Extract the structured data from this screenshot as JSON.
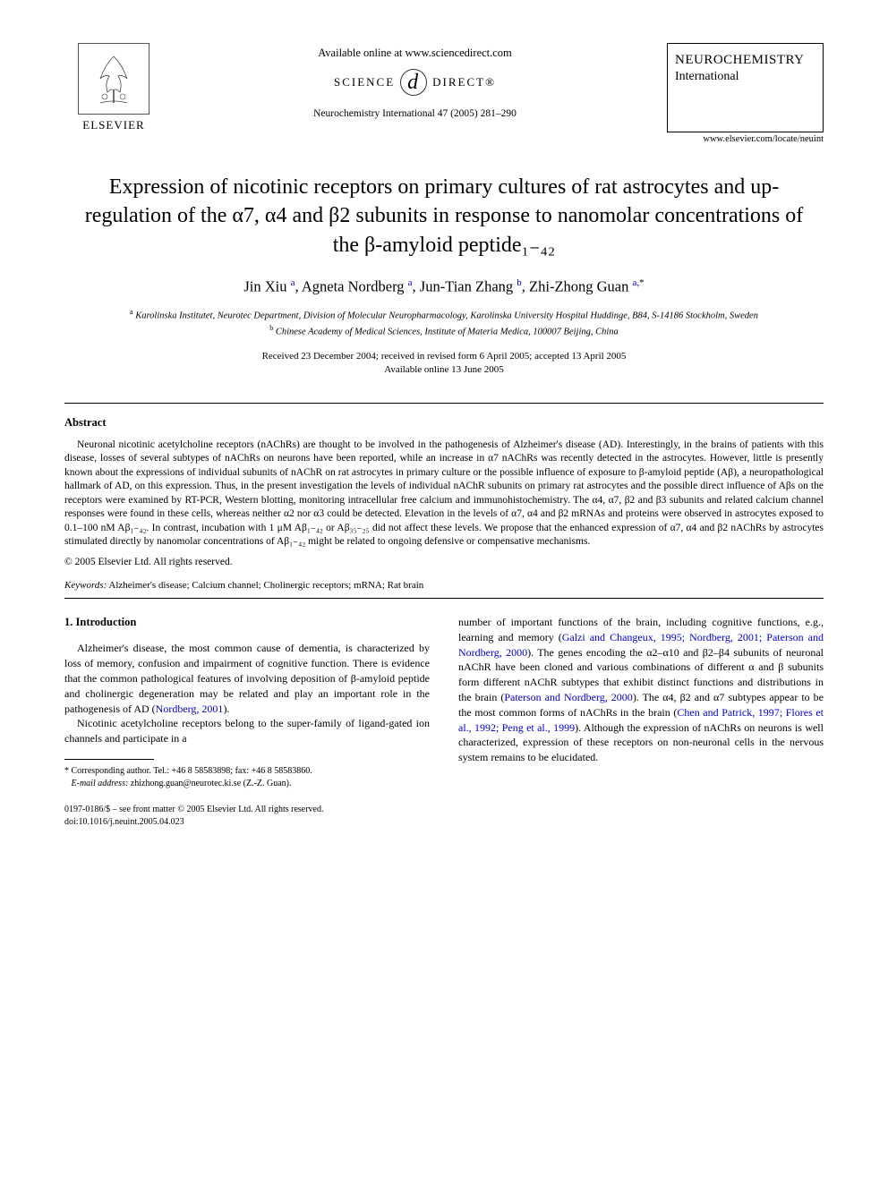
{
  "header": {
    "available_online": "Available online at www.sciencedirect.com",
    "science_direct_left": "SCIENCE",
    "science_direct_right": "DIRECT®",
    "citation": "Neurochemistry International 47 (2005) 281–290",
    "publisher_name": "ELSEVIER",
    "journal_name_line1": "NEUROCHEMISTRY",
    "journal_name_line2": "International",
    "journal_url": "www.elsevier.com/locate/neuint"
  },
  "title": "Expression of nicotinic receptors on primary cultures of rat astrocytes and up-regulation of the α7, α4 and β2 subunits in response to nanomolar concentrations of the β-amyloid peptide₁₋₄₂",
  "authors_html": "Jin Xiu <sup><a class='ref' href='#'>a</a></sup>, Agneta Nordberg <sup><a class='ref' href='#'>a</a></sup>, Jun-Tian Zhang <sup><a class='ref' href='#'>b</a></sup>, Zhi-Zhong Guan <sup><a class='ref' href='#'>a,</a>*</sup>",
  "affiliations": {
    "a": "Karolinska Institutet, Neurotec Department, Division of Molecular Neuropharmacology, Karolinska University Hospital Huddinge, B84, S-14186 Stockholm, Sweden",
    "b": "Chinese Academy of Medical Sciences, Institute of Materia Medica, 100007 Beijing, China"
  },
  "dates": {
    "received": "Received 23 December 2004; received in revised form 6 April 2005; accepted 13 April 2005",
    "online": "Available online 13 June 2005"
  },
  "abstract": {
    "heading": "Abstract",
    "body": "Neuronal nicotinic acetylcholine receptors (nAChRs) are thought to be involved in the pathogenesis of Alzheimer's disease (AD). Interestingly, in the brains of patients with this disease, losses of several subtypes of nAChRs on neurons have been reported, while an increase in α7 nAChRs was recently detected in the astrocytes. However, little is presently known about the expressions of individual subunits of nAChR on rat astrocytes in primary culture or the possible influence of exposure to β-amyloid peptide (Aβ), a neuropathological hallmark of AD, on this expression. Thus, in the present investigation the levels of individual nAChR subunits on primary rat astrocytes and the possible direct influence of Aβs on the receptors were examined by RT-PCR, Western blotting, monitoring intracellular free calcium and immunohistochemistry. The α4, α7, β2 and β3 subunits and related calcium channel responses were found in these cells, whereas neither α2 nor α3 could be detected. Elevation in the levels of α7, α4 and β2 mRNAs and proteins were observed in astrocytes exposed to 0.1–100 nM Aβ₁₋₄₂. In contrast, incubation with 1 μM Aβ₁₋₄₂ or Aβ₃₅₋₂₅ did not affect these levels. We propose that the enhanced expression of α7, α4 and β2 nAChRs by astrocytes stimulated directly by nanomolar concentrations of Aβ₁₋₄₂ might be related to ongoing defensive or compensative mechanisms.",
    "copyright": "© 2005 Elsevier Ltd. All rights reserved."
  },
  "keywords": {
    "label": "Keywords:",
    "list": "Alzheimer's disease; Calcium channel; Cholinergic receptors; mRNA; Rat brain"
  },
  "introduction": {
    "heading": "1. Introduction",
    "left_p1": "Alzheimer's disease, the most common cause of dementia, is characterized by loss of memory, confusion and impairment of cognitive function. There is evidence that the common pathological features of involving deposition of β-amyloid peptide and cholinergic degeneration may be related and play an important role in the pathogenesis of AD (",
    "left_ref1": "Nordberg, 2001",
    "left_p1_end": ").",
    "left_p2": "Nicotinic acetylcholine receptors belong to the super-family of ligand-gated ion channels and participate in a",
    "right_p1a": "number of important functions of the brain, including cognitive functions, e.g., learning and memory (",
    "right_ref1": "Galzi and Changeux, 1995; Nordberg, 2001; Paterson and Nordberg, 2000",
    "right_p1b": "). The genes encoding the α2–α10 and β2–β4 subunits of neuronal nAChR have been cloned and various combinations of different α and β subunits form different nAChR subtypes that exhibit distinct functions and distributions in the brain (",
    "right_ref2": "Paterson and Nordberg, 2000",
    "right_p1c": "). The α4, β2 and α7 subtypes appear to be the most common forms of nAChRs in the brain (",
    "right_ref3": "Chen and Patrick, 1997; Flores et al., 1992; Peng et al., 1999",
    "right_p1d": "). Although the expression of nAChRs on neurons is well characterized, expression of these receptors on non-neuronal cells in the nervous system remains to be elucidated."
  },
  "footnote": {
    "corresponding": "* Corresponding author. Tel.: +46 8 58583898; fax: +46 8 58583860.",
    "email_label": "E-mail address:",
    "email": "zhizhong.guan@neurotec.ki.se (Z.-Z. Guan)."
  },
  "doi": {
    "line1": "0197-0186/$ – see front matter © 2005 Elsevier Ltd. All rights reserved.",
    "line2": "doi:10.1016/j.neuint.2005.04.023"
  }
}
